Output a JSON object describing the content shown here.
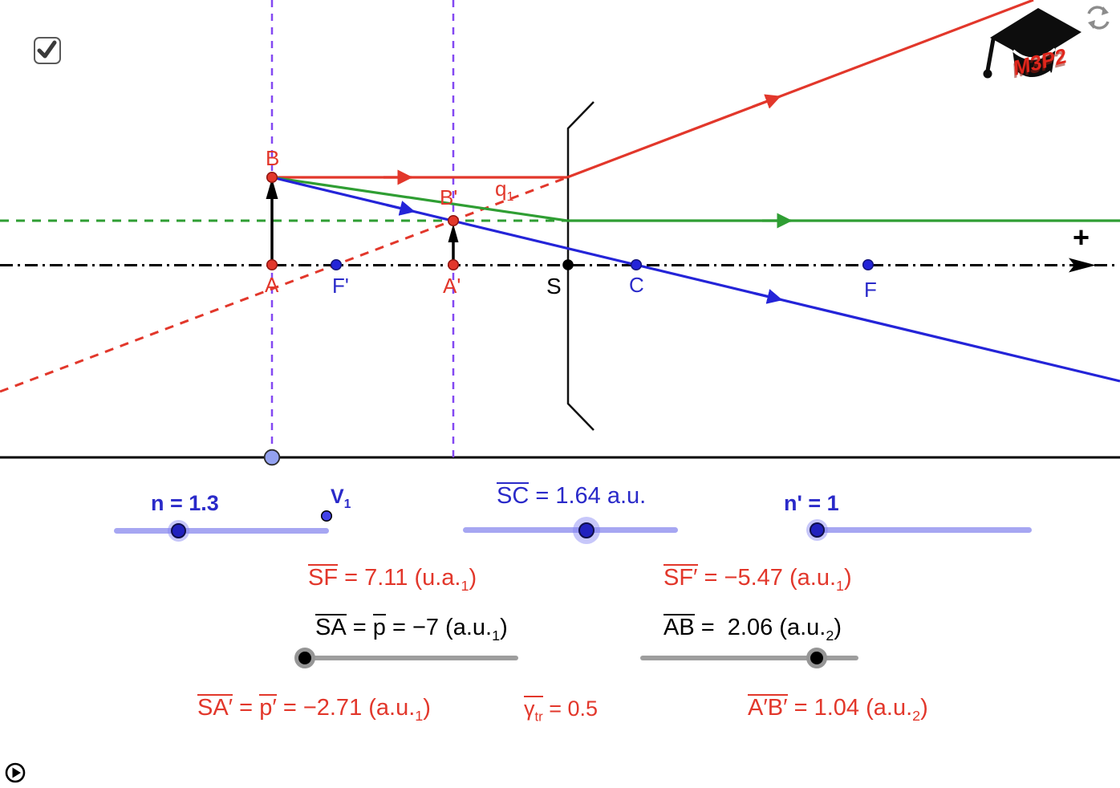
{
  "colors": {
    "ray_red": "#E2372B",
    "ray_green": "#2F9E33",
    "ray_blue": "#2424D8",
    "construction_purple": "#8348F2",
    "axis_black": "#000000",
    "red_text": "#EA453B",
    "blue_text": "#2A2AC9",
    "slider_knob_blue": "#2121BE",
    "slider_track_blue": "#A6A6F2",
    "slider_track_gray": "#9E9E9E",
    "point_light_blue": "#93A1EF"
  },
  "header": {
    "checkbox_checked": true,
    "logo_text": "M3P2"
  },
  "diagram": {
    "points": {
      "B": "B",
      "A": "A",
      "B_prime": "B'",
      "A_prime": "A'",
      "F_prime": "F'",
      "S": "S",
      "C": "C",
      "F": "F"
    },
    "q1": {
      "base": "q",
      "sub": "1"
    },
    "v1": {
      "base": "V",
      "sub": "1"
    },
    "plus_sign": "+"
  },
  "sliders": {
    "n": {
      "label": "n = 1.3"
    },
    "sc": {
      "parts": [
        {
          "t": "SC",
          "ov": true
        },
        {
          "t": " = 1.64 a.u."
        }
      ]
    },
    "n_prime": {
      "label": "n' = 1"
    },
    "sa": {
      "parts": [
        {
          "t": "SA",
          "ov": true
        },
        {
          "t": " = "
        },
        {
          "t": "p",
          "ov": true
        },
        {
          "t": " = −7 (a.u.",
          "s": "1"
        },
        {
          "t": ")"
        }
      ]
    },
    "ab": {
      "parts": [
        {
          "t": "AB",
          "ov": true
        },
        {
          "t": " =  2.06 (a.u.",
          "s": "2"
        },
        {
          "t": ")"
        }
      ]
    }
  },
  "readouts": {
    "sf": {
      "parts": [
        {
          "t": "SF",
          "ov": true
        },
        {
          "t": " = 7.11 (u.a.",
          "s": "1"
        },
        {
          "t": ")"
        }
      ]
    },
    "sf_prime": {
      "parts": [
        {
          "t": "SF′",
          "ov": true
        },
        {
          "t": " = −5.47 (a.u.",
          "s": "1"
        },
        {
          "t": ")"
        }
      ]
    },
    "sa_prime": {
      "parts": [
        {
          "t": "SA′",
          "ov": true
        },
        {
          "t": " = "
        },
        {
          "t": "p′",
          "ov": true
        },
        {
          "t": " = −2.71 (a.u.",
          "s": "1"
        },
        {
          "t": ")"
        }
      ]
    },
    "gamma_tr": {
      "parts": [
        {
          "t": "γ",
          "s": "tr",
          "ov": true
        },
        {
          "t": " = 0.5"
        }
      ]
    },
    "a_prime_b_prime": {
      "parts": [
        {
          "t": "A′B′",
          "ov": true
        },
        {
          "t": " = 1.04 (a.u.",
          "s": "2"
        },
        {
          "t": ")"
        }
      ]
    }
  }
}
